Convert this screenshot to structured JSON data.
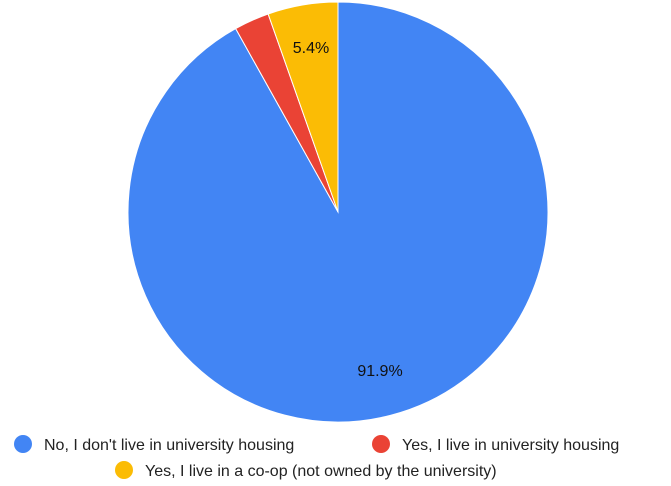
{
  "chart_data": {
    "type": "pie",
    "title": "",
    "slices": [
      {
        "label": "No, I don't live in university housing",
        "value": 91.9,
        "display": "91.9%",
        "color": "#4285F4"
      },
      {
        "label": "Yes, I live in university housing",
        "value": 2.7,
        "display": "",
        "color": "#EA4335"
      },
      {
        "label": "Yes, I live in a co-op (not owned by the university)",
        "value": 5.4,
        "display": "5.4%",
        "color": "#FBBC05"
      }
    ],
    "start_angle": "top",
    "direction": "counterclockwise",
    "legend_position": "bottom"
  }
}
